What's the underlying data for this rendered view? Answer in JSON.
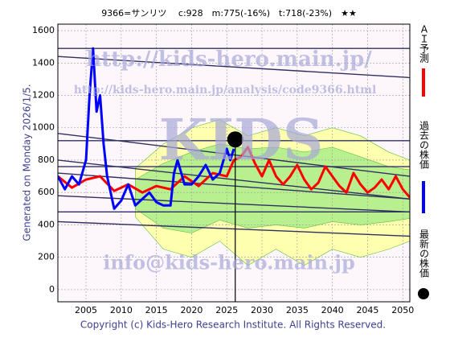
{
  "chart_data": {
    "type": "line",
    "title": "9366=サンリツ　 c:928　m:775(-16%)　t:718(-23%)　★★",
    "side_note": "Generated on Monday 2026/1/5.",
    "footer": "Copyright (c) Kids-Hero Research Institute. All Rights Reserved.",
    "watermarks": [
      "http://kids-hero.main.jp/",
      "http://kids-hero.main.jp/analysis/code9366.html",
      "KIDS",
      "info@kids-hero.main.jp"
    ],
    "xlim": [
      2001,
      2051
    ],
    "ylim": [
      -75,
      1640
    ],
    "xticks": [
      2005,
      2010,
      2015,
      2020,
      2025,
      2030,
      2035,
      2040,
      2045,
      2050
    ],
    "yticks": [
      0,
      200,
      400,
      600,
      800,
      1000,
      1200,
      1400,
      1600
    ],
    "grid": true,
    "bands": [
      {
        "color": "#ffffb0",
        "x": [
          2012,
          2016,
          2020,
          2024,
          2028,
          2032,
          2036,
          2040,
          2044,
          2048,
          2051
        ],
        "upper": [
          750,
          900,
          1000,
          1050,
          950,
          1000,
          950,
          1000,
          950,
          850,
          800
        ],
        "lower": [
          450,
          250,
          200,
          300,
          150,
          250,
          150,
          250,
          200,
          250,
          300
        ]
      },
      {
        "color": "#b8f090",
        "x": [
          2012,
          2016,
          2020,
          2024,
          2028,
          2032,
          2036,
          2040,
          2044,
          2048,
          2051
        ],
        "upper": [
          680,
          780,
          850,
          900,
          870,
          880,
          850,
          880,
          820,
          760,
          740
        ],
        "lower": [
          500,
          380,
          350,
          430,
          380,
          400,
          380,
          420,
          400,
          420,
          440
        ]
      }
    ],
    "trend_lines": {
      "color": "#303060",
      "x": [
        2001,
        2051
      ],
      "lines": [
        [
          1490,
          1490
        ],
        [
          1440,
          1310
        ],
        [
          965,
          700
        ],
        [
          920,
          920
        ],
        [
          800,
          560
        ],
        [
          760,
          760
        ],
        [
          720,
          560
        ],
        [
          580,
          480
        ],
        [
          480,
          480
        ],
        [
          420,
          330
        ]
      ]
    },
    "series": [
      {
        "name": "ＡＩ予測",
        "color": "#ff0000",
        "x": [
          2001,
          2003,
          2005,
          2007,
          2009,
          2011,
          2013,
          2015,
          2017,
          2019,
          2021,
          2023,
          2025,
          2026,
          2027,
          2028,
          2029,
          2030,
          2031,
          2032,
          2033,
          2034,
          2035,
          2036,
          2037,
          2038,
          2039,
          2040,
          2041,
          2042,
          2043,
          2044,
          2045,
          2046,
          2047,
          2048,
          2049,
          2050,
          2051
        ],
        "values": [
          700,
          630,
          680,
          700,
          610,
          650,
          600,
          640,
          620,
          700,
          640,
          720,
          700,
          800,
          820,
          880,
          780,
          700,
          800,
          700,
          650,
          700,
          770,
          680,
          620,
          660,
          760,
          700,
          640,
          600,
          720,
          650,
          600,
          630,
          680,
          620,
          700,
          620,
          570
        ]
      },
      {
        "name": "過去の株価",
        "color": "#0000ff",
        "x": [
          2001,
          2002,
          2003,
          2004,
          2005,
          2005.5,
          2006,
          2006.5,
          2007,
          2007.5,
          2008,
          2009,
          2010,
          2011,
          2012,
          2013,
          2014,
          2015,
          2016,
          2017,
          2017.5,
          2018,
          2019,
          2020,
          2021,
          2022,
          2023,
          2024,
          2025,
          2025.5,
          2026
        ],
        "values": [
          700,
          620,
          700,
          650,
          800,
          1200,
          1490,
          1100,
          1200,
          900,
          700,
          500,
          550,
          650,
          520,
          560,
          600,
          540,
          520,
          520,
          720,
          800,
          650,
          650,
          700,
          770,
          680,
          720,
          870,
          800,
          870
        ]
      },
      {
        "name": "最新の株価",
        "color": "#000000",
        "x": [
          2026.2
        ],
        "values": [
          928
        ]
      }
    ]
  }
}
